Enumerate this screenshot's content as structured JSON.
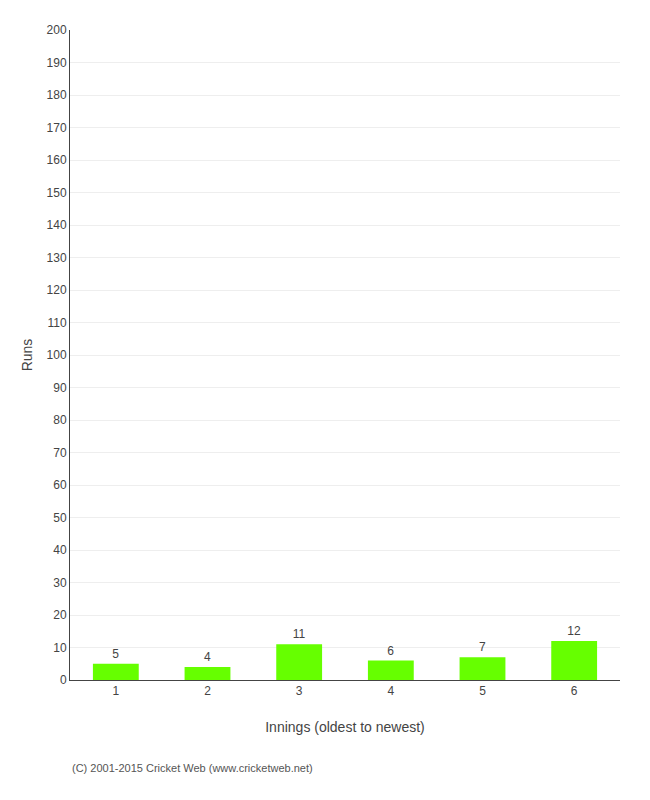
{
  "chart_data": {
    "type": "bar",
    "xlabel": "Innings (oldest to newest)",
    "ylabel": "Runs",
    "categories": [
      "1",
      "2",
      "3",
      "4",
      "5",
      "6"
    ],
    "values": [
      5,
      4,
      11,
      6,
      7,
      12
    ],
    "color": "#66ff00",
    "ylim": [
      0,
      200
    ],
    "yticks": [
      0,
      10,
      20,
      30,
      40,
      50,
      60,
      70,
      80,
      90,
      100,
      110,
      120,
      130,
      140,
      150,
      160,
      170,
      180,
      190,
      200
    ],
    "grid": true,
    "data_labels": true,
    "annotations": [
      "(C) 2001-2015 Cricket Web (www.cricketweb.net)"
    ]
  }
}
